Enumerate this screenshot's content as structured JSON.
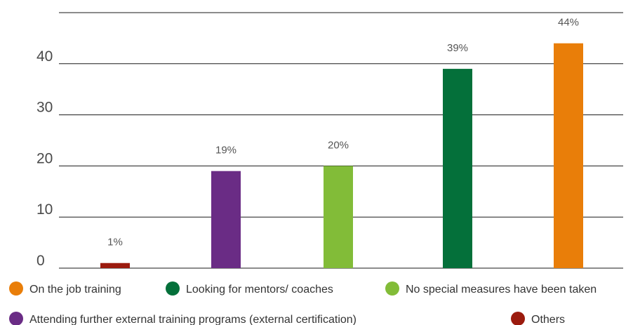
{
  "chart_data": {
    "type": "bar",
    "categories": [
      "Others",
      "Attending further external training programs (external certification)",
      "No special measures have been taken",
      "Looking for mentors/ coaches",
      "On the job training"
    ],
    "values": [
      1,
      19,
      20,
      39,
      44
    ],
    "data_labels": [
      "1%",
      "19%",
      "20%",
      "39%",
      "44%"
    ],
    "colors": [
      "#9b1b0e",
      "#6a2c85",
      "#82bc38",
      "#04703a",
      "#e97e09"
    ],
    "yticks": [
      0,
      10,
      20,
      30,
      40
    ],
    "ytick_labels": [
      "0",
      "10",
      "20",
      "30",
      "40"
    ],
    "ylim": [
      0,
      50
    ],
    "grid": true,
    "legend_position": "bottom",
    "legend": [
      {
        "label": "On the job training",
        "color": "#e97e09"
      },
      {
        "label": "Looking for mentors/ coaches",
        "color": "#04703a"
      },
      {
        "label": "No special measures have been taken",
        "color": "#82bc38"
      },
      {
        "label": "Attending further external training programs (external certification)",
        "color": "#6a2c85"
      },
      {
        "label": "Others",
        "color": "#9b1b0e"
      }
    ]
  }
}
